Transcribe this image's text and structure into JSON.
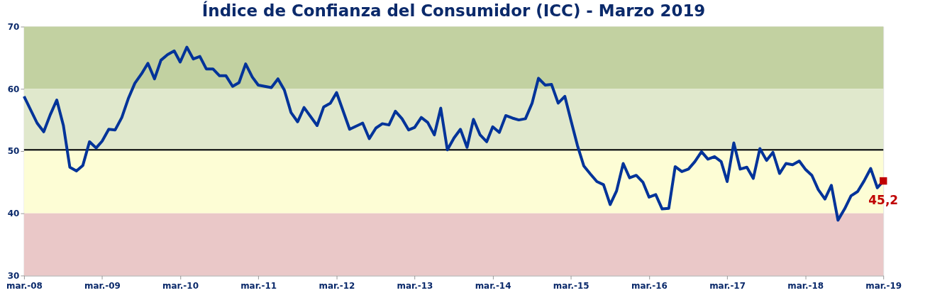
{
  "chart_data": {
    "type": "line",
    "title": "Índice de Confianza del Consumidor (ICC) - Marzo 2019",
    "x": [
      "2008-03",
      "2008-05",
      "2008-06",
      "2008-07",
      "2008-08",
      "2008-09",
      "2008-10",
      "2008-11",
      "2008-12",
      "2009-01",
      "2009-02",
      "2009-03",
      "2009-04",
      "2009-05",
      "2009-06",
      "2009-07",
      "2009-08",
      "2009-09",
      "2009-10",
      "2009-11",
      "2009-12",
      "2010-01",
      "2010-02",
      "2010-03",
      "2010-04",
      "2010-05",
      "2010-06",
      "2010-07",
      "2010-08",
      "2010-09",
      "2010-10",
      "2010-11",
      "2010-12",
      "2011-01",
      "2011-02",
      "2011-03",
      "2011-05",
      "2011-06",
      "2011-07",
      "2011-08",
      "2011-09",
      "2011-10",
      "2011-12",
      "2012-01",
      "2012-02",
      "2012-03",
      "2012-05",
      "2012-07",
      "2012-08",
      "2012-09",
      "2012-10",
      "2012-11",
      "2012-12",
      "2013-01",
      "2013-02",
      "2013-03",
      "2013-04",
      "2013-05",
      "2013-06",
      "2013-07",
      "2013-08",
      "2013-09",
      "2013-10",
      "2013-11",
      "2013-12",
      "2014-01",
      "2014-02",
      "2014-03",
      "2014-04",
      "2014-05",
      "2014-06",
      "2014-07",
      "2014-08",
      "2014-09",
      "2014-10",
      "2014-11",
      "2014-12",
      "2015-01",
      "2015-02",
      "2015-03",
      "2015-04",
      "2015-05",
      "2015-06",
      "2015-07",
      "2015-08",
      "2015-09",
      "2015-10",
      "2015-11",
      "2015-12",
      "2016-01",
      "2016-02",
      "2016-03",
      "2016-04",
      "2016-05",
      "2016-06",
      "2016-07",
      "2016-08",
      "2016-09",
      "2016-10",
      "2016-11",
      "2016-12",
      "2017-01",
      "2017-02",
      "2017-03",
      "2017-04",
      "2017-05",
      "2017-06",
      "2017-07",
      "2017-08",
      "2017-09",
      "2017-10",
      "2017-11",
      "2017-12",
      "2018-01",
      "2018-02",
      "2018-03",
      "2018-04",
      "2018-05",
      "2018-06",
      "2018-07",
      "2018-08",
      "2018-09",
      "2018-10",
      "2018-11",
      "2018-12",
      "2019-01",
      "2019-02",
      "2019-03"
    ],
    "series": [
      {
        "color": "#003399",
        "marker": "none",
        "values": [
          58.8,
          54.5,
          53.1,
          55.8,
          58.2,
          54.1,
          47.4,
          46.8,
          47.7,
          51.5,
          50.5,
          51.6,
          53.5,
          53.4,
          55.4,
          58.4,
          60.9,
          62.4,
          64.1,
          61.6,
          64.6,
          65.5,
          66.1,
          64.3,
          66.7,
          64.8,
          65.2,
          63.2,
          63.2,
          62.1,
          62.1,
          60.4,
          61.0,
          64.0,
          61.9,
          60.6,
          60.2,
          61.6,
          59.8,
          56.2,
          54.7,
          57.0,
          54.1,
          57.1,
          57.7,
          59.4,
          53.5,
          54.5,
          52.0,
          53.7,
          54.4,
          54.2,
          56.4,
          55.2,
          53.4,
          53.8,
          55.4,
          54.6,
          52.6,
          56.9,
          50.2,
          52.1,
          53.5,
          50.6,
          55.1,
          52.6,
          51.5,
          53.9,
          53.0,
          55.7,
          55.3,
          55.0,
          55.2,
          57.7,
          61.7,
          60.6,
          60.7,
          57.7,
          58.8,
          55.0,
          50.9,
          47.6,
          46.3,
          45.1,
          44.6,
          41.4,
          43.6,
          48.0,
          45.7,
          46.1,
          45.0,
          42.6,
          43.0,
          40.7,
          40.8,
          47.5,
          46.7,
          47.1,
          48.3,
          49.9,
          48.7,
          49.1,
          48.3,
          45.1,
          51.3,
          47.1,
          47.4,
          45.6,
          50.4,
          48.5,
          49.8,
          46.4,
          48.0,
          47.8,
          48.4,
          47.1,
          46.1,
          43.8,
          42.3,
          44.5,
          38.9,
          40.7,
          42.8,
          43.5,
          45.2,
          47.2,
          44.1,
          45.2
        ]
      },
      {
        "type": "scatter",
        "color": "#c00000",
        "marker": "square",
        "x": [
          "2019-03"
        ],
        "values": [
          45.2
        ],
        "value_labels": [
          "45,2"
        ]
      }
    ],
    "xlim": [
      "2008-03",
      "2019-03"
    ],
    "xticks": [
      {
        "value": "2008-03",
        "label": "mar.-08"
      },
      {
        "value": "2009-03",
        "label": "mar.-09"
      },
      {
        "value": "2010-03",
        "label": "mar.-10"
      },
      {
        "value": "2011-03",
        "label": "mar.-11"
      },
      {
        "value": "2012-03",
        "label": "mar.-12"
      },
      {
        "value": "2013-03",
        "label": "mar.-13"
      },
      {
        "value": "2014-03",
        "label": "mar.-14"
      },
      {
        "value": "2015-03",
        "label": "mar.-15"
      },
      {
        "value": "2016-03",
        "label": "mar.-16"
      },
      {
        "value": "2017-03",
        "label": "mar.-17"
      },
      {
        "value": "2018-03",
        "label": "mar.-18"
      },
      {
        "value": "2019-03",
        "label": "mar.-19"
      }
    ],
    "ylim": [
      30,
      70
    ],
    "yticks": [
      30,
      40,
      50,
      60,
      70
    ],
    "bands": [
      {
        "axis": "y",
        "from": 60,
        "to": 70,
        "color": "#c2d1a1"
      },
      {
        "axis": "y",
        "from": 50,
        "to": 60,
        "color": "#e0e8cc"
      },
      {
        "axis": "y",
        "from": 40,
        "to": 50,
        "color": "#fdfdd5"
      },
      {
        "axis": "y",
        "from": 30,
        "to": 40,
        "color": "#eac8c8"
      }
    ],
    "ref_lines": [
      {
        "axis": "y",
        "value": 50.2,
        "color": "#000000"
      }
    ],
    "grid": false
  }
}
